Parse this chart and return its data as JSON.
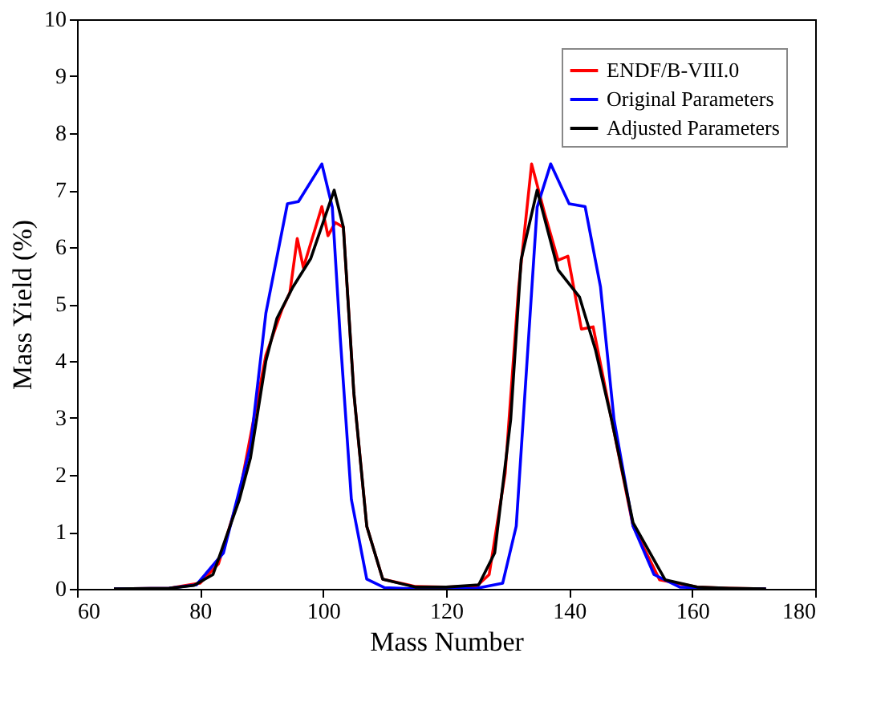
{
  "chart_data": {
    "type": "line",
    "xlabel": "Mass Number",
    "ylabel": "Mass Yield (%)",
    "xlim": [
      60,
      180
    ],
    "xticks": [
      60,
      80,
      100,
      120,
      140,
      160,
      180
    ],
    "ylim": [
      0,
      10
    ],
    "yticks": [
      0,
      1,
      2,
      3,
      4,
      5,
      6,
      7,
      8,
      9,
      10
    ],
    "grid": false,
    "legend": "top right",
    "marker": "none",
    "line_style": "solid",
    "series": [
      {
        "name": "ENDF/B-VIII.0",
        "color": "#ff0000",
        "x": [
          66,
          75,
          80,
          83,
          86.4,
          90.7,
          93.3,
          94.6,
          95.8,
          96.8,
          99.8,
          100.8,
          102,
          103.3,
          105,
          107.1,
          109.7,
          115,
          120,
          125,
          127,
          129.6,
          131.8,
          133.9,
          136,
          138.2,
          139.8,
          142,
          143.9,
          146.9,
          150.4,
          154.7,
          160.8,
          166,
          172
        ],
        "values": [
          0,
          0.01,
          0.1,
          0.44,
          1.66,
          4.1,
          4.9,
          5.2,
          6.15,
          5.64,
          6.71,
          6.2,
          6.43,
          6.35,
          3.44,
          1.1,
          0.17,
          0.04,
          0.03,
          0.05,
          0.25,
          2.03,
          5.3,
          7.46,
          6.6,
          5.77,
          5.84,
          4.56,
          4.6,
          2.97,
          1.1,
          0.16,
          0.03,
          0.01,
          0
        ]
      },
      {
        "name": "Original Parameters",
        "color": "#0000ff",
        "x": [
          66,
          75,
          79.4,
          83.8,
          88.2,
          90.7,
          94.2,
          96,
          99.8,
          101.5,
          102.8,
          104.6,
          107.1,
          110,
          115,
          120,
          125,
          129.2,
          131.4,
          133.1,
          134.8,
          137,
          140,
          142.6,
          145.1,
          147.3,
          150.4,
          153.8,
          158,
          166,
          172
        ],
        "values": [
          0,
          0.01,
          0.07,
          0.63,
          2.5,
          4.84,
          6.76,
          6.8,
          7.46,
          6.7,
          4.4,
          1.57,
          0.17,
          0.02,
          0,
          0,
          0.01,
          0.1,
          1.1,
          3.9,
          6.7,
          7.46,
          6.76,
          6.71,
          5.3,
          2.97,
          1.1,
          0.25,
          0.03,
          0,
          0
        ]
      },
      {
        "name": "Adjusted Parameters",
        "color": "#000000",
        "x": [
          66,
          75,
          79,
          82.1,
          86.4,
          88.2,
          90.7,
          92.5,
          95.1,
          98,
          101.8,
          103.3,
          105,
          107.1,
          109.7,
          115,
          120,
          125.3,
          127.9,
          130.5,
          132.2,
          134.8,
          138.2,
          141.7,
          144.3,
          146.9,
          150.4,
          155.6,
          160.8,
          166,
          172
        ],
        "values": [
          0,
          0.01,
          0.06,
          0.25,
          1.57,
          2.3,
          4.0,
          4.75,
          5.3,
          5.8,
          7.0,
          6.35,
          3.44,
          1.1,
          0.17,
          0.03,
          0.03,
          0.07,
          0.63,
          2.97,
          5.78,
          7.0,
          5.6,
          5.12,
          4.19,
          2.97,
          1.16,
          0.16,
          0.03,
          0.01,
          0
        ]
      }
    ]
  }
}
